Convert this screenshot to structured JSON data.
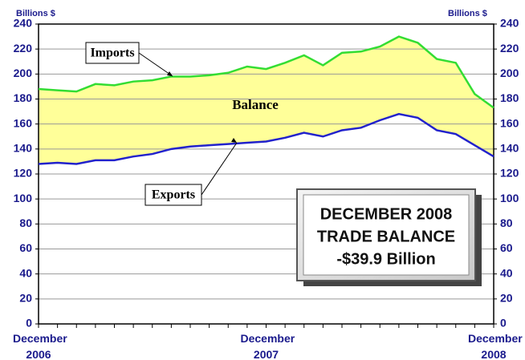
{
  "chart_data": {
    "type": "line",
    "ylabel": "Billions $",
    "y2label": "Billions $",
    "categories": [
      "December 2006",
      null,
      null,
      null,
      null,
      null,
      null,
      null,
      null,
      null,
      null,
      null,
      "December 2007",
      null,
      null,
      null,
      null,
      null,
      null,
      null,
      null,
      null,
      null,
      null,
      "December 2008"
    ],
    "series": [
      {
        "name": "Imports",
        "color": "#33dd33",
        "values": [
          188,
          187,
          186,
          192,
          191,
          194,
          195,
          198,
          198,
          199,
          201,
          206,
          204,
          209,
          215,
          207,
          217,
          218,
          222,
          230,
          225,
          212,
          209,
          184,
          173
        ]
      },
      {
        "name": "Exports",
        "color": "#2222cc",
        "values": [
          128,
          129,
          128,
          131,
          131,
          134,
          136,
          140,
          142,
          143,
          144,
          145,
          146,
          149,
          153,
          150,
          155,
          157,
          163,
          168,
          165,
          155,
          152,
          143,
          134
        ]
      }
    ],
    "fill_between": {
      "label": "Balance",
      "color": "#ffff99"
    },
    "callout": [
      "DECEMBER 2008",
      "TRADE BALANCE",
      "-$39.9 Billion"
    ],
    "ylim": [
      0,
      240
    ],
    "yticks": [
      0,
      20,
      40,
      60,
      80,
      100,
      120,
      140,
      160,
      180,
      200,
      220,
      240
    ],
    "y2lim": [
      0,
      240
    ],
    "y2ticks": [
      0,
      20,
      40,
      60,
      80,
      100,
      120,
      140,
      160,
      180,
      200,
      220,
      240
    ],
    "grid": true
  }
}
